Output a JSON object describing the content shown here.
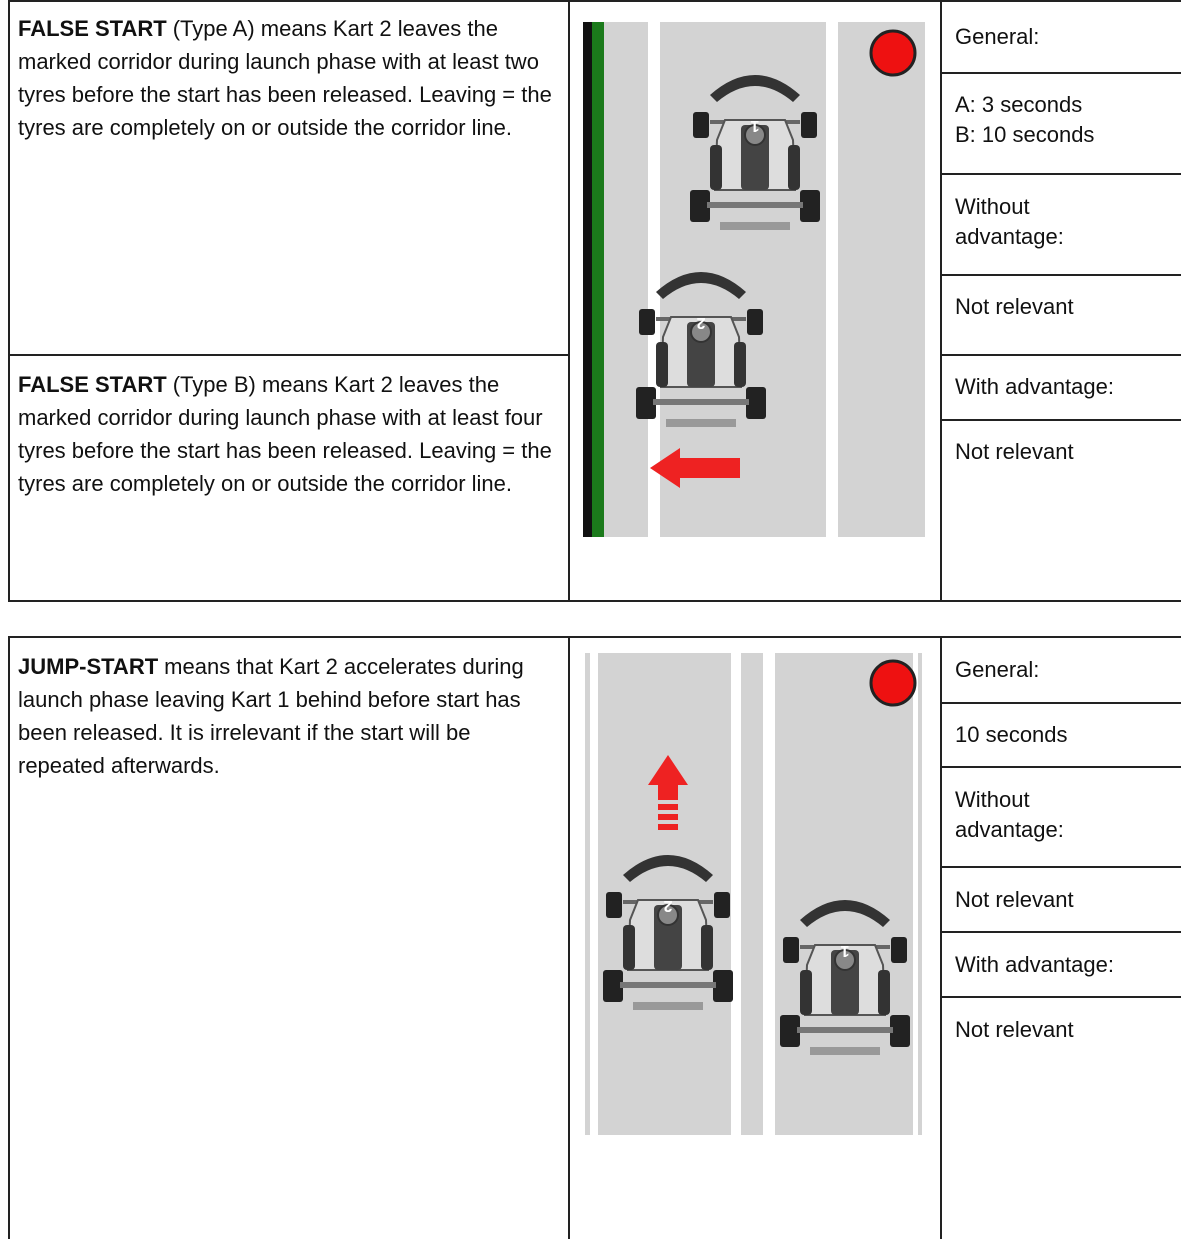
{
  "tables": [
    {
      "rows": [
        {
          "lead": "FALSE START",
          "text": "(Type A) means Kart 2 leaves the marked corridor during launch phase with at least two tyres before the start has been released. Leaving = the tyres are completely on or outside the corridor line."
        },
        {
          "lead": "FALSE START",
          "text": "(Type B) means Kart 2 leaves the marked corridor during launch phase with at least four tyres before the start has been released. Leaving = the tyres are completely on or outside the corridor line."
        }
      ],
      "side": [
        "General:",
        [
          "A: 3 seconds",
          "B: 10 seconds"
        ],
        "Without advantage:",
        "Not relevant",
        "With advantage:",
        "Not relevant"
      ],
      "kart_numbers": [
        "1",
        "2"
      ]
    },
    {
      "rows": [
        {
          "lead": "JUMP-START",
          "text": "means that Kart 2 accelerates during launch phase leaving Kart 1 behind before start has been released. It is irrelevant if the start will be repeated afterwards."
        }
      ],
      "side": [
        "General:",
        "10 seconds",
        "Without advantage:",
        "Not relevant",
        "With advantage:",
        "Not relevant"
      ],
      "kart_numbers": [
        "2",
        "1"
      ]
    }
  ]
}
